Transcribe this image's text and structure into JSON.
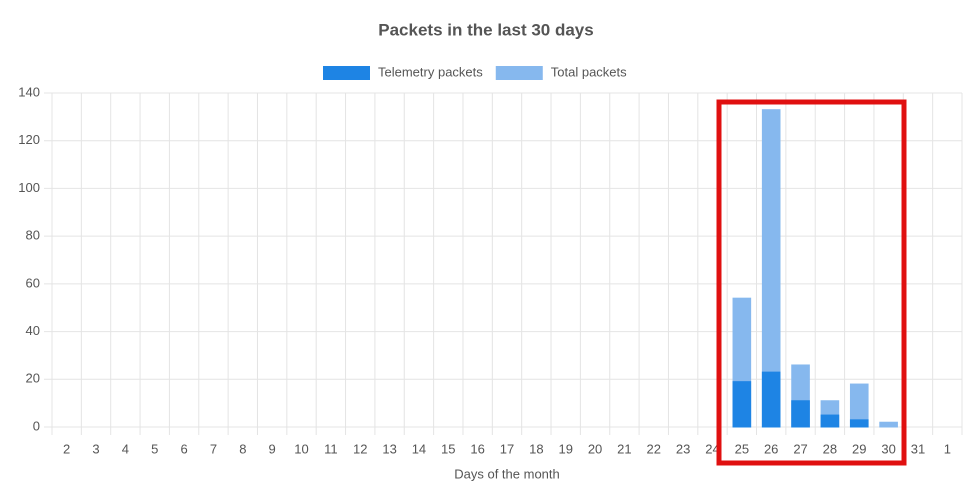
{
  "chart_data": {
    "type": "bar",
    "title": "Packets in the last 30 days",
    "x_label": "Days of the month",
    "categories": [
      "2",
      "3",
      "4",
      "5",
      "6",
      "7",
      "8",
      "9",
      "10",
      "11",
      "12",
      "13",
      "14",
      "15",
      "16",
      "17",
      "18",
      "19",
      "20",
      "21",
      "22",
      "23",
      "24",
      "25",
      "26",
      "27",
      "28",
      "29",
      "30",
      "31",
      "1"
    ],
    "series": [
      {
        "name": "Telemetry packets",
        "color": "#1e84e4",
        "values": [
          0,
          0,
          0,
          0,
          0,
          0,
          0,
          0,
          0,
          0,
          0,
          0,
          0,
          0,
          0,
          0,
          0,
          0,
          0,
          0,
          0,
          0,
          0,
          19,
          23,
          11,
          5,
          3,
          0,
          0,
          0
        ]
      },
      {
        "name": "Total packets",
        "color": "#86b8ee",
        "values": [
          0,
          0,
          0,
          0,
          0,
          0,
          0,
          0,
          0,
          0,
          0,
          0,
          0,
          0,
          0,
          0,
          0,
          0,
          0,
          0,
          0,
          0,
          0,
          54,
          133,
          26,
          11,
          18,
          2,
          0,
          0
        ]
      }
    ],
    "ylim": [
      0,
      140
    ],
    "yticks": [
      0,
      20,
      40,
      60,
      80,
      100,
      120,
      140
    ],
    "grid": true
  }
}
